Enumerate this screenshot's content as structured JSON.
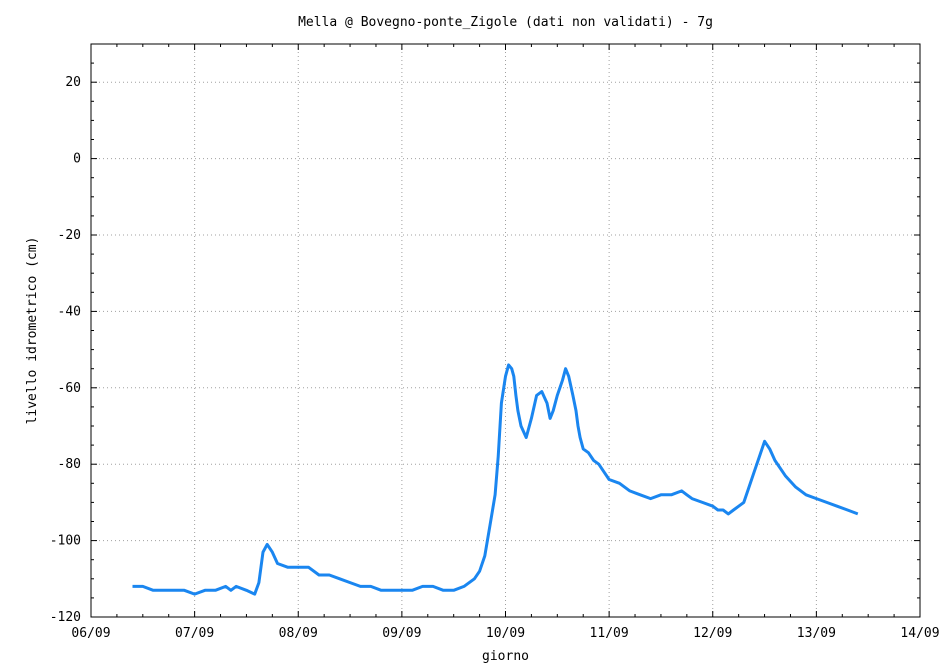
{
  "chart_data": {
    "type": "line",
    "title": "Mella @ Bovegno-ponte_Zigole (dati non validati) - 7g",
    "xlabel": "giorno",
    "ylabel": "livello idrometrico (cm)",
    "xlim": [
      "06/09",
      "14/09"
    ],
    "ylim": [
      -120,
      30
    ],
    "x_ticks": [
      "06/09",
      "07/09",
      "08/09",
      "09/09",
      "10/09",
      "11/09",
      "12/09",
      "13/09",
      "14/09"
    ],
    "y_ticks": [
      -120,
      -100,
      -80,
      -60,
      -40,
      -20,
      0,
      20
    ],
    "grid": true,
    "legend": "none",
    "series": [
      {
        "color": "#1a86f0",
        "x": [
          6.4,
          6.5,
          6.6,
          6.7,
          6.8,
          6.9,
          7.0,
          7.1,
          7.2,
          7.3,
          7.35,
          7.4,
          7.5,
          7.58,
          7.62,
          7.66,
          7.7,
          7.75,
          7.8,
          7.9,
          8.0,
          8.1,
          8.2,
          8.3,
          8.4,
          8.5,
          8.6,
          8.7,
          8.8,
          8.9,
          9.0,
          9.1,
          9.2,
          9.3,
          9.4,
          9.5,
          9.6,
          9.7,
          9.75,
          9.8,
          9.85,
          9.9,
          9.93,
          9.96,
          10.0,
          10.03,
          10.06,
          10.08,
          10.1,
          10.12,
          10.15,
          10.2,
          10.25,
          10.3,
          10.35,
          10.4,
          10.43,
          10.46,
          10.5,
          10.55,
          10.58,
          10.61,
          10.65,
          10.68,
          10.7,
          10.72,
          10.75,
          10.8,
          10.85,
          10.9,
          10.95,
          11.0,
          11.1,
          11.2,
          11.3,
          11.4,
          11.5,
          11.6,
          11.7,
          11.75,
          11.8,
          11.9,
          12.0,
          12.05,
          12.1,
          12.15,
          12.2,
          12.25,
          12.3,
          12.35,
          12.4,
          12.45,
          12.5,
          12.55,
          12.6,
          12.7,
          12.8,
          12.9,
          13.0,
          13.1,
          13.2,
          13.3,
          13.4
        ],
        "y": [
          -112,
          -112,
          -113,
          -113,
          -113,
          -113,
          -114,
          -113,
          -113,
          -112,
          -113,
          -112,
          -113,
          -114,
          -111,
          -103,
          -101,
          -103,
          -106,
          -107,
          -107,
          -107,
          -109,
          -109,
          -110,
          -111,
          -112,
          -112,
          -113,
          -113,
          -113,
          -113,
          -112,
          -112,
          -113,
          -113,
          -112,
          -110,
          -108,
          -104,
          -96,
          -88,
          -78,
          -64,
          -57,
          -54,
          -55,
          -57,
          -62,
          -66,
          -70,
          -73,
          -68,
          -62,
          -61,
          -64,
          -68,
          -66,
          -62,
          -58,
          -55,
          -57,
          -62,
          -66,
          -70,
          -73,
          -76,
          -77,
          -79,
          -80,
          -82,
          -84,
          -85,
          -87,
          -88,
          -89,
          -88,
          -88,
          -87,
          -88,
          -89,
          -90,
          -91,
          -92,
          -92,
          -93,
          -92,
          -91,
          -90,
          -86,
          -82,
          -78,
          -74,
          -76,
          -79,
          -83,
          -86,
          -88,
          -89,
          -90,
          -91,
          -92,
          -93
        ]
      }
    ]
  }
}
